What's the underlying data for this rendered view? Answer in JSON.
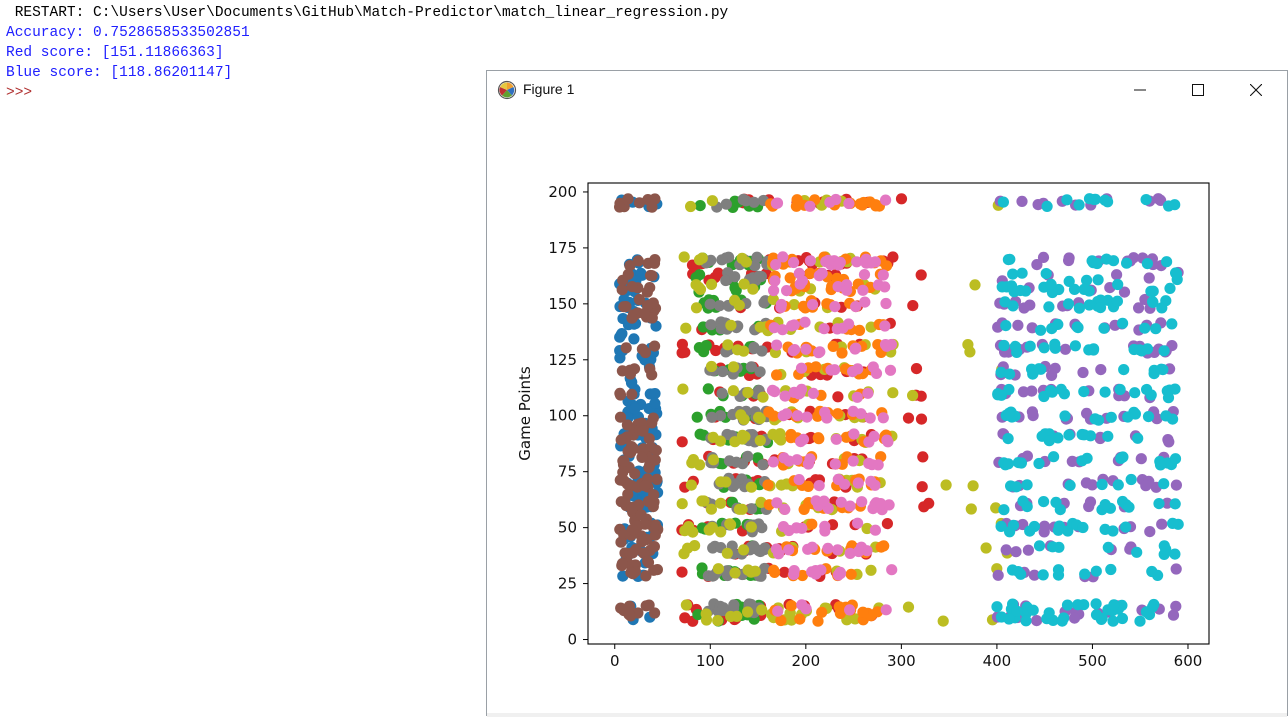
{
  "shell": {
    "lines": [
      {
        "text": " RESTART: C:\\Users\\User\\Documents\\GitHub\\Match-Predictor\\match_linear_regression.py",
        "color": "#000000"
      },
      {
        "text": "Accuracy: 0.7528658533502851",
        "color": "#2020ff"
      },
      {
        "text": "Red score: [151.11866363]",
        "color": "#2020ff"
      },
      {
        "text": "Blue score: [118.86201147]",
        "color": "#2020ff"
      },
      {
        "text": ">>>",
        "color": "#b03030"
      }
    ]
  },
  "figure_window": {
    "title": "Figure 1",
    "controls": [
      "minimize-icon",
      "maximize-icon",
      "close-icon"
    ]
  },
  "chart_data": {
    "type": "scatter",
    "title": "",
    "xlabel": "",
    "ylabel": "Game Points",
    "xlim": [
      -28,
      622
    ],
    "ylim": [
      -2,
      204
    ],
    "xticks": [
      0,
      100,
      200,
      300,
      400,
      500,
      600
    ],
    "yticks": [
      0,
      25,
      50,
      75,
      100,
      125,
      150,
      175,
      200
    ],
    "grid": false,
    "legend": "none",
    "series": [
      {
        "color": "#1f77b4",
        "x_range": [
          5,
          45
        ],
        "y_range": [
          10,
          195
        ],
        "y_levels": [
          195,
          169,
          162,
          157,
          150,
          145,
          140,
          135,
          130,
          125,
          120,
          115,
          110,
          105,
          100,
          95,
          90,
          85,
          80,
          75,
          70,
          65,
          60,
          55,
          50,
          45,
          40,
          35,
          30,
          14,
          10
        ],
        "approx_points": 140
      },
      {
        "color": "#8c564b",
        "x_range": [
          5,
          45
        ],
        "y_range": [
          10,
          195
        ],
        "y_levels": [
          195,
          169,
          162,
          157,
          150,
          145,
          130,
          120,
          110,
          100,
          95,
          90,
          85,
          80,
          75,
          70,
          65,
          60,
          55,
          50,
          45,
          40,
          35,
          30,
          14,
          10
        ],
        "approx_points": 160
      },
      {
        "color": "#d62728",
        "x_range": [
          70,
          330
        ],
        "y_range": [
          10,
          195
        ],
        "y_levels": [
          195,
          169,
          162,
          150,
          140,
          130,
          120,
          110,
          100,
          90,
          80,
          70,
          60,
          50,
          40,
          30,
          14,
          10
        ],
        "approx_points": 190
      },
      {
        "color": "#2ca02c",
        "x_range": [
          85,
          160
        ],
        "y_range": [
          10,
          195
        ],
        "y_levels": [
          195,
          169,
          162,
          157,
          150,
          140,
          130,
          120,
          110,
          100,
          90,
          80,
          70,
          60,
          50,
          40,
          30,
          14,
          10
        ],
        "approx_points": 110
      },
      {
        "color": "#7f7f7f",
        "x_range": [
          95,
          160
        ],
        "y_range": [
          10,
          195
        ],
        "y_levels": [
          195,
          169,
          162,
          150,
          140,
          130,
          120,
          110,
          100,
          90,
          80,
          70,
          60,
          50,
          40,
          30,
          14
        ],
        "approx_points": 160
      },
      {
        "color": "#bcbd22",
        "x_range": [
          70,
          420
        ],
        "y_range": [
          10,
          195
        ],
        "y_levels": [
          195,
          169,
          157,
          150,
          140,
          130,
          120,
          110,
          100,
          90,
          80,
          70,
          60,
          50,
          40,
          30,
          14,
          10
        ],
        "approx_points": 210
      },
      {
        "color": "#ff7f0e",
        "x_range": [
          160,
          285
        ],
        "y_range": [
          10,
          195
        ],
        "y_levels": [
          195,
          169,
          162,
          157,
          150,
          140,
          130,
          120,
          110,
          100,
          90,
          80,
          70,
          60,
          50,
          40,
          30,
          14,
          10
        ],
        "approx_points": 170
      },
      {
        "color": "#e377c2",
        "x_range": [
          165,
          290
        ],
        "y_range": [
          10,
          195
        ],
        "y_levels": [
          195,
          169,
          162,
          157,
          150,
          140,
          130,
          120,
          110,
          100,
          90,
          80,
          70,
          60,
          50,
          40,
          30,
          14
        ],
        "approx_points": 170
      },
      {
        "color": "#9467bd",
        "x_range": [
          400,
          590
        ],
        "y_range": [
          10,
          195
        ],
        "y_levels": [
          195,
          169,
          162,
          157,
          150,
          140,
          130,
          120,
          110,
          100,
          90,
          80,
          70,
          60,
          50,
          40,
          30,
          14,
          10
        ],
        "approx_points": 190
      },
      {
        "color": "#17becf",
        "x_range": [
          400,
          590
        ],
        "y_range": [
          10,
          195
        ],
        "y_levels": [
          195,
          169,
          162,
          157,
          150,
          140,
          130,
          120,
          110,
          100,
          90,
          80,
          70,
          60,
          50,
          40,
          30,
          14,
          10
        ],
        "approx_points": 260
      }
    ]
  }
}
